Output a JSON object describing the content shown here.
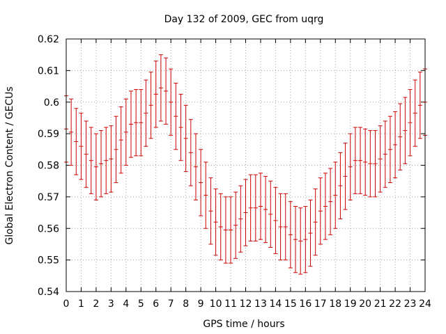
{
  "chart_data": {
    "type": "line",
    "title": "Day 132 of 2009, GEC from uqrg",
    "xlabel": "GPS time / hours",
    "ylabel": "Global Electron Content / GECUs",
    "xlim": [
      0,
      24
    ],
    "ylim": [
      0.54,
      0.62
    ],
    "xticks": [
      0,
      1,
      2,
      3,
      4,
      5,
      6,
      7,
      8,
      9,
      10,
      11,
      12,
      13,
      14,
      15,
      16,
      17,
      18,
      19,
      20,
      21,
      22,
      23,
      24
    ],
    "yticks": [
      0.54,
      0.55,
      0.56,
      0.57,
      0.58,
      0.59,
      0.6,
      0.61,
      0.62
    ],
    "ytick_labels": [
      "0.54",
      "0.55",
      "0.56",
      "0.57",
      "0.58",
      "0.59",
      "0.6",
      "0.61",
      "0.62"
    ],
    "grid": true,
    "series": [
      {
        "color": "#cc0000",
        "style": "errorbars",
        "x": [
          0,
          0.333,
          0.667,
          1,
          1.333,
          1.667,
          2,
          2.333,
          2.667,
          3,
          3.333,
          3.667,
          4,
          4.333,
          4.667,
          5,
          5.333,
          5.667,
          6,
          6.333,
          6.667,
          7,
          7.333,
          7.667,
          8,
          8.333,
          8.667,
          9,
          9.333,
          9.667,
          10,
          10.333,
          10.667,
          11,
          11.333,
          11.667,
          12,
          12.333,
          12.667,
          13,
          13.333,
          13.667,
          14,
          14.333,
          14.667,
          15,
          15.333,
          15.667,
          16,
          16.333,
          16.667,
          17,
          17.333,
          17.667,
          18,
          18.333,
          18.667,
          19,
          19.333,
          19.667,
          20,
          20.333,
          20.667,
          21,
          21.333,
          21.667,
          22,
          22.333,
          22.667,
          23,
          23.333,
          23.667,
          24
        ],
        "values": [
          0.5915,
          0.5905,
          0.5875,
          0.586,
          0.5835,
          0.5815,
          0.5795,
          0.5805,
          0.5815,
          0.582,
          0.585,
          0.588,
          0.5905,
          0.593,
          0.5935,
          0.5935,
          0.5965,
          0.599,
          0.6025,
          0.6045,
          0.6035,
          0.6,
          0.5955,
          0.592,
          0.5885,
          0.584,
          0.5795,
          0.5745,
          0.5705,
          0.5655,
          0.562,
          0.5605,
          0.5595,
          0.5595,
          0.561,
          0.563,
          0.565,
          0.5665,
          0.5665,
          0.567,
          0.566,
          0.5645,
          0.5625,
          0.5605,
          0.5605,
          0.558,
          0.5565,
          0.556,
          0.5565,
          0.5585,
          0.562,
          0.5655,
          0.567,
          0.5685,
          0.5705,
          0.5735,
          0.5765,
          0.5795,
          0.5815,
          0.5815,
          0.581,
          0.5805,
          0.5805,
          0.582,
          0.5835,
          0.585,
          0.5865,
          0.589,
          0.591,
          0.5935,
          0.5965,
          0.599,
          0.6
        ],
        "error": [
          0.0105,
          0.0105,
          0.0105,
          0.0105,
          0.0105,
          0.0105,
          0.0105,
          0.0105,
          0.0105,
          0.0105,
          0.0105,
          0.0105,
          0.0105,
          0.0105,
          0.0105,
          0.0105,
          0.0105,
          0.0105,
          0.0105,
          0.0105,
          0.0105,
          0.0105,
          0.0105,
          0.0105,
          0.0105,
          0.0105,
          0.0105,
          0.0105,
          0.0105,
          0.0105,
          0.0105,
          0.0105,
          0.0105,
          0.0105,
          0.0105,
          0.0105,
          0.0105,
          0.0105,
          0.0105,
          0.0105,
          0.0105,
          0.0105,
          0.0105,
          0.0105,
          0.0105,
          0.0105,
          0.0105,
          0.0105,
          0.0105,
          0.0105,
          0.0105,
          0.0105,
          0.0105,
          0.0105,
          0.0105,
          0.0105,
          0.0105,
          0.0105,
          0.0105,
          0.0105,
          0.0105,
          0.0105,
          0.0105,
          0.0105,
          0.0105,
          0.0105,
          0.0105,
          0.0105,
          0.0105,
          0.0105,
          0.0105,
          0.0105,
          0.0105
        ]
      }
    ]
  }
}
